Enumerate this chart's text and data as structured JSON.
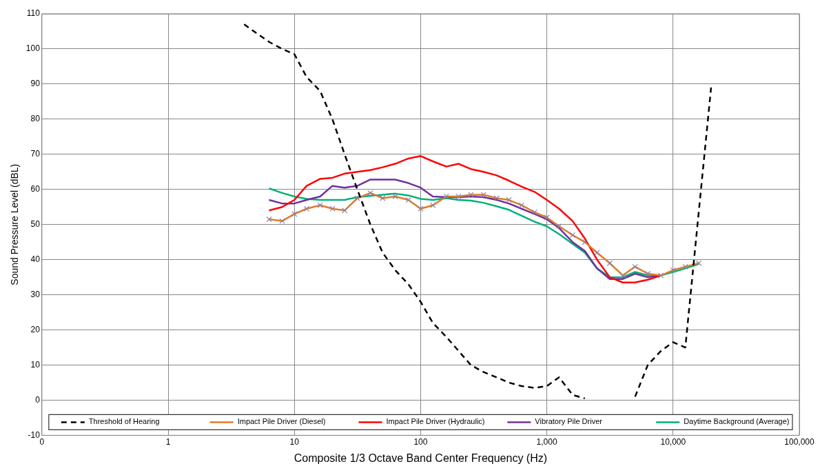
{
  "chart_data": {
    "type": "line",
    "xlabel": "Composite 1/3 Octave Band Center Frequency (Hz)",
    "ylabel": "Sound Pressure Level (dBL)",
    "log": "x",
    "grid": true,
    "legend": "bottom",
    "marker": "none",
    "xlim": [
      0.1,
      100000
    ],
    "xticks": [
      {
        "value": 0.1,
        "label": "0"
      },
      1,
      10,
      100,
      {
        "value": 1000,
        "label": "1,000"
      },
      {
        "value": 10000,
        "label": "10,000"
      },
      {
        "value": 100000,
        "label": "100,000"
      }
    ],
    "ylim": [
      -10,
      110
    ],
    "yticks": [
      -10,
      0,
      10,
      20,
      30,
      40,
      50,
      60,
      70,
      80,
      90,
      100,
      110
    ],
    "x": [
      6.3,
      8,
      10,
      12.5,
      16,
      20,
      25,
      31.5,
      40,
      50,
      63,
      80,
      100,
      125,
      160,
      200,
      250,
      315,
      400,
      500,
      630,
      800,
      1000,
      1250,
      1600,
      2000,
      2500,
      3150,
      4000,
      5000,
      6300,
      8000,
      10000,
      12500,
      16000
    ],
    "series": [
      {
        "name": "Threshold of Hearing",
        "color": "#000000",
        "line_style": "dashed",
        "x": [
          4,
          5,
          6.3,
          8,
          10,
          12.5,
          16,
          20,
          25,
          31.5,
          40,
          50,
          63,
          80,
          100,
          125,
          160,
          200,
          250,
          315,
          400,
          500,
          630,
          800,
          1000,
          1250,
          1600,
          2000,
          2500,
          3150,
          4000,
          5000,
          6300,
          8000,
          10000,
          12500,
          20000
        ],
        "values": [
          107,
          104.5,
          102,
          100,
          98.5,
          92,
          88,
          80,
          70,
          60,
          50,
          42,
          37,
          33,
          28,
          22,
          18,
          14,
          10,
          8,
          6.5,
          5,
          4,
          3.5,
          4,
          6.5,
          1.5,
          0.5,
          null,
          null,
          null,
          1,
          10,
          14,
          16.5,
          15,
          89
        ]
      },
      {
        "name": "Impact Pile Driver (Diesel)",
        "color": "#e07b28",
        "marker": "cross",
        "values": [
          51.5,
          51,
          53,
          54.5,
          55.5,
          54.5,
          54,
          57.5,
          59,
          57.5,
          58,
          57,
          54.5,
          55.5,
          58,
          58,
          58.5,
          58.5,
          57.5,
          57,
          55.5,
          53.5,
          52,
          49.5,
          47,
          45,
          42,
          39,
          35.5,
          38,
          36,
          35.5,
          37,
          38,
          39
        ]
      },
      {
        "name": "Impact Pile Driver (Hydraulic)",
        "color": "#ff0000",
        "values": [
          54,
          55,
          57,
          61,
          63,
          63.3,
          64.5,
          65,
          65.5,
          66.3,
          67.3,
          68.8,
          69.5,
          68,
          66.5,
          67.3,
          65.8,
          65,
          64,
          62.5,
          60.8,
          59.3,
          57,
          54.5,
          51,
          46,
          40,
          35,
          33.5,
          33.5,
          34.3,
          35.5,
          null,
          null,
          null
        ]
      },
      {
        "name": "Vibratory Pile Driver",
        "color": "#7030a0",
        "values": [
          57,
          56,
          56,
          57,
          58,
          61,
          60.5,
          61,
          62.8,
          62.8,
          62.8,
          61.8,
          60.5,
          58,
          57.8,
          57.8,
          58,
          57.8,
          57,
          56,
          54.5,
          53,
          51.5,
          49,
          45,
          42.5,
          37.5,
          34.5,
          34.5,
          36,
          35,
          35.5,
          null,
          null,
          null
        ]
      },
      {
        "name": "Daytime Background (Average)",
        "color": "#00b07a",
        "values": [
          60.3,
          59,
          58,
          57.3,
          57,
          57,
          57,
          57.8,
          58.2,
          58.5,
          58.8,
          58.3,
          57.3,
          57,
          57.5,
          57,
          56.8,
          56.2,
          55.2,
          54.2,
          52.5,
          50.8,
          49.5,
          47.3,
          44.5,
          42,
          37.5,
          35,
          35,
          36.5,
          35.5,
          35.5,
          36.5,
          37.5,
          38.8
        ]
      }
    ]
  }
}
